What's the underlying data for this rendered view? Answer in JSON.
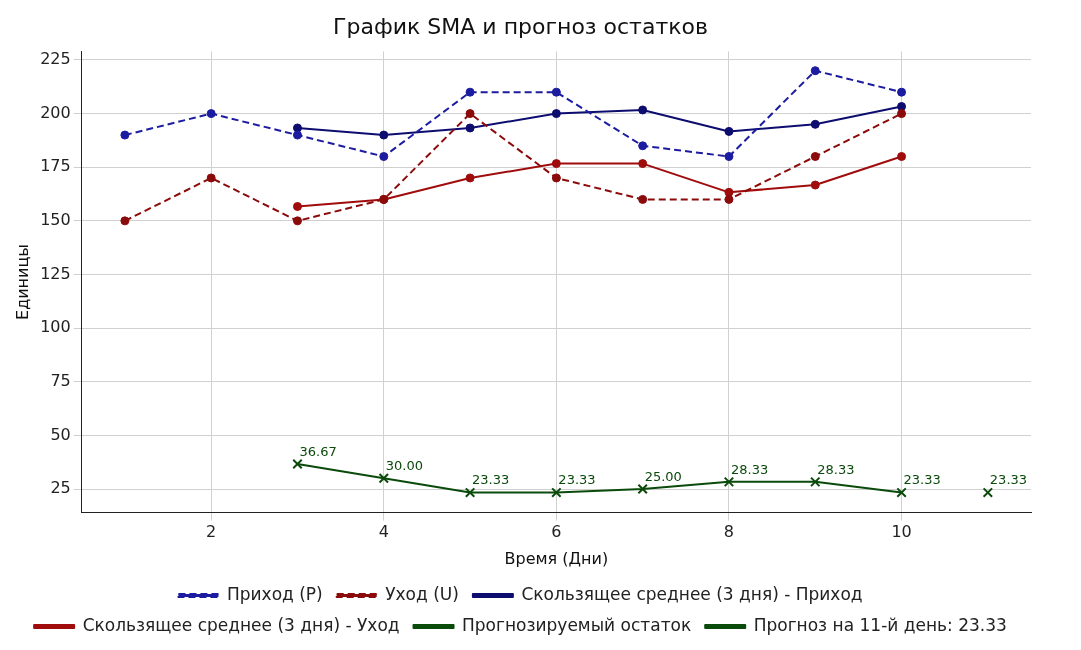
{
  "chart_data": {
    "type": "line",
    "title": "График SMA и прогноз остатков",
    "xlabel": "Время (Дни)",
    "ylabel": "Единицы",
    "x": [
      1,
      2,
      3,
      4,
      5,
      6,
      7,
      8,
      9,
      10
    ],
    "series": [
      {
        "name": "Приход (P)",
        "color": "#1c1ca0",
        "marker": "circle",
        "line_style": "dashed",
        "values": [
          190,
          200,
          190,
          180,
          210,
          210,
          185,
          180,
          220,
          210
        ]
      },
      {
        "name": "Уход (U)",
        "color": "#8b0a0a",
        "marker": "circle",
        "line_style": "dashed",
        "values": [
          150,
          170,
          150,
          160,
          200,
          170,
          160,
          160,
          180,
          200
        ]
      },
      {
        "name": "Скользящее среднее (3 дня) - Приход",
        "color": "#0d0d70",
        "marker": "circle",
        "line_style": "solid",
        "x": [
          3,
          4,
          5,
          6,
          7,
          8,
          9,
          10
        ],
        "values": [
          193.3,
          190,
          193.3,
          200,
          201.7,
          191.7,
          195,
          203.3
        ]
      },
      {
        "name": "Скользящее среднее (3 дня) - Уход",
        "color": "#a00c0c",
        "marker": "circle",
        "line_style": "solid",
        "x": [
          3,
          4,
          5,
          6,
          7,
          8,
          9,
          10
        ],
        "values": [
          156.7,
          160,
          170,
          176.7,
          176.7,
          163.3,
          166.7,
          180
        ]
      },
      {
        "name": "Прогнозируемый остаток",
        "color": "#0a4a0a",
        "marker": "cross",
        "line_style": "solid",
        "x": [
          3,
          4,
          5,
          6,
          7,
          8,
          9,
          10
        ],
        "values": [
          36.67,
          30,
          23.33,
          23.33,
          25,
          28.33,
          28.33,
          23.33
        ],
        "value_labels": [
          "36.67",
          "30.00",
          "23.33",
          "23.33",
          "25.00",
          "28.33",
          "28.33",
          "23.33"
        ]
      },
      {
        "name": "Прогноз на 11-й день: 23.33",
        "type": "scatter",
        "color": "#0a4a0a",
        "marker": "cross",
        "x": [
          11
        ],
        "values": [
          23.33
        ],
        "value_labels": [
          "23.33"
        ]
      }
    ],
    "xlim": [
      0.5,
      11.5
    ],
    "xticks": [
      2,
      4,
      6,
      8,
      10
    ],
    "ylim": [
      14,
      229
    ],
    "yticks": [
      25,
      50,
      75,
      100,
      125,
      150,
      175,
      200,
      225
    ],
    "grid": true,
    "legend": "bottom"
  }
}
